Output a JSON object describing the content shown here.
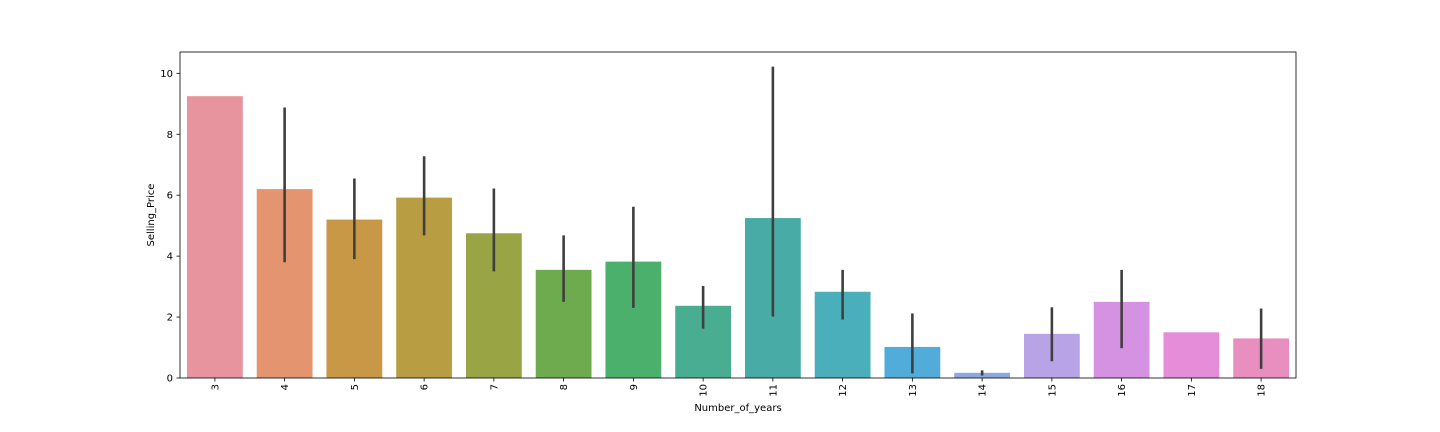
{
  "chart_data": {
    "type": "bar",
    "categories": [
      "3",
      "4",
      "5",
      "6",
      "7",
      "8",
      "9",
      "10",
      "11",
      "12",
      "13",
      "14",
      "15",
      "16",
      "17",
      "18"
    ],
    "values": [
      9.25,
      6.2,
      5.2,
      5.92,
      4.75,
      3.55,
      3.82,
      2.37,
      5.25,
      2.83,
      1.02,
      0.17,
      1.45,
      2.5,
      1.5,
      1.3
    ],
    "error_low": [
      null,
      3.8,
      3.9,
      4.68,
      3.5,
      2.5,
      2.3,
      1.62,
      2.02,
      1.92,
      0.15,
      0.08,
      0.55,
      0.98,
      null,
      0.3
    ],
    "error_high": [
      null,
      8.88,
      6.55,
      7.28,
      6.22,
      4.68,
      5.62,
      3.02,
      10.22,
      3.55,
      2.12,
      0.25,
      2.32,
      3.55,
      null,
      2.28
    ],
    "colors": [
      "#e8949f",
      "#e4946f",
      "#c99846",
      "#b89d42",
      "#99a444",
      "#6dab4e",
      "#4bb06c",
      "#48ad91",
      "#49aba5",
      "#4aaebb",
      "#52acd9",
      "#8ea9e1",
      "#b7a3e6",
      "#d591e2",
      "#e68dd9",
      "#e98fc0"
    ],
    "error_color": "#3f3f3f",
    "xlabel": "Number_of_years",
    "ylabel": "Selling_Price",
    "ylim": [
      0,
      10.7
    ],
    "yticks": [
      0,
      2,
      4,
      6,
      8,
      10
    ],
    "grid": false,
    "legend": "none"
  }
}
